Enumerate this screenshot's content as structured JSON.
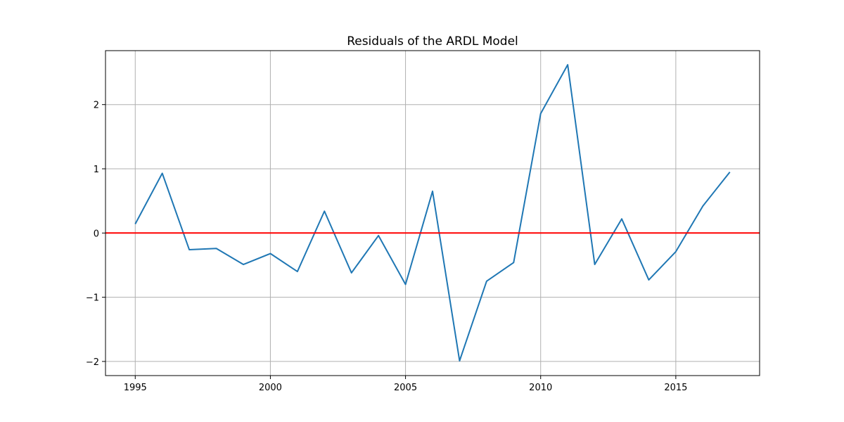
{
  "chart_data": {
    "type": "line",
    "title": "Residuals of the ARDL Model",
    "xlabel": "",
    "ylabel": "",
    "xlim": [
      1993.9,
      2018.1
    ],
    "ylim": [
      -2.22,
      2.84
    ],
    "x_ticks": [
      1995,
      2000,
      2005,
      2010,
      2015
    ],
    "x_tick_labels": [
      "1995",
      "2000",
      "2005",
      "2010",
      "2015"
    ],
    "y_ticks": [
      -2,
      -1,
      0,
      1,
      2
    ],
    "y_tick_labels": [
      "−2",
      "−1",
      "0",
      "1",
      "2"
    ],
    "grid": true,
    "series": [
      {
        "color": "#1f77b4",
        "x": [
          1995,
          1996,
          1997,
          1998,
          1999,
          2000,
          2001,
          2002,
          2003,
          2004,
          2005,
          2006,
          2007,
          2008,
          2009,
          2010,
          2011,
          2012,
          2013,
          2014,
          2015,
          2016,
          2017
        ],
        "values": [
          0.14,
          0.93,
          -0.26,
          -0.24,
          -0.49,
          -0.32,
          -0.6,
          0.34,
          -0.62,
          -0.04,
          -0.8,
          0.65,
          -1.99,
          -0.75,
          -0.46,
          1.86,
          2.62,
          -0.49,
          0.22,
          -0.73,
          -0.29,
          0.42,
          0.95
        ]
      }
    ],
    "reference_line": {
      "y": 0,
      "color": "#ff0000"
    }
  }
}
